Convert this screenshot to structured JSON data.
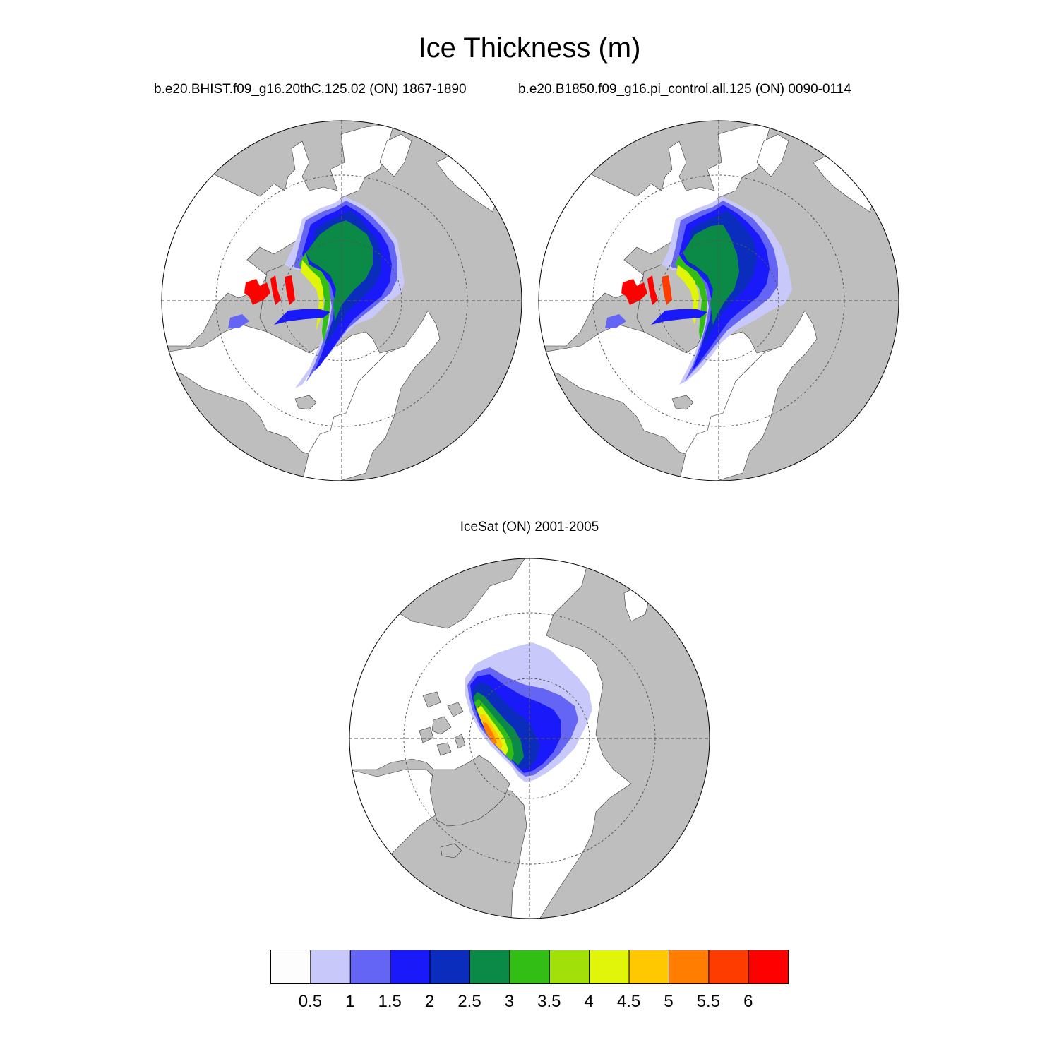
{
  "title": "Ice Thickness (m)",
  "panels": [
    {
      "id": "model-hist",
      "title": "b.e20.BHIST.f09_g16.20thC.125.02 (ON) 1867-1890",
      "type": "model"
    },
    {
      "id": "model-pi",
      "title": "b.e20.B1850.f09_g16.pi_control.all.125 (ON) 0090-0114",
      "type": "model"
    },
    {
      "id": "icesat",
      "title": "IceSat (ON) 2001-2005",
      "type": "observation"
    }
  ],
  "colorbar": {
    "labels": [
      "0.5",
      "1",
      "1.5",
      "2",
      "2.5",
      "3",
      "3.5",
      "4",
      "4.5",
      "5",
      "5.5",
      "6"
    ],
    "colors": [
      "#fdfdfd",
      "#c8c8fa",
      "#6464f5",
      "#1919fa",
      "#0a2dbd",
      "#0a8a46",
      "#32be14",
      "#a2e00a",
      "#e1f50a",
      "#ffc800",
      "#ff7d00",
      "#ff3c00",
      "#ff0000"
    ]
  },
  "map_style": {
    "land_color": "#bebebe",
    "ocean_color": "#ffffff",
    "projection": "north-polar-stereographic",
    "gridlines": "dashed"
  }
}
